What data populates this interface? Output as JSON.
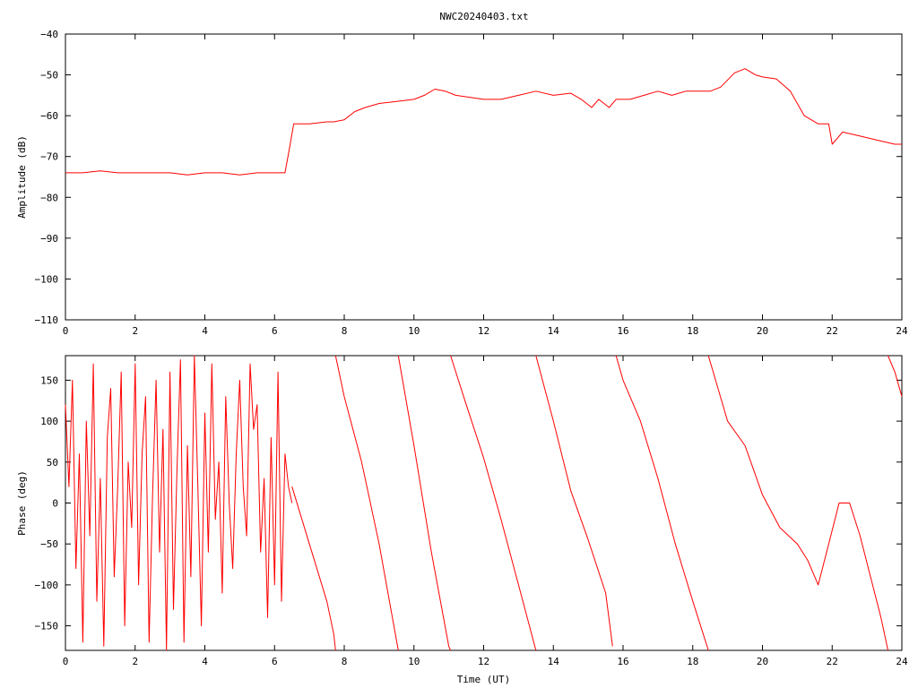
{
  "title": "NWC20240403.txt",
  "colors": {
    "trace": "#ff0000",
    "axes": "#000000",
    "background": "#ffffff"
  },
  "chart_data": [
    {
      "type": "line",
      "title": "NWC20240403.txt",
      "xlabel": "",
      "ylabel": "Amplitude (dB)",
      "xlim": [
        0,
        24
      ],
      "ylim": [
        -110,
        -40
      ],
      "xticks": [
        "0",
        "2",
        "4",
        "6",
        "8",
        "10",
        "12",
        "14",
        "16",
        "18",
        "20",
        "22",
        "24"
      ],
      "yticks": [
        "-40",
        "-50",
        "-60",
        "-70",
        "-80",
        "-90",
        "-100",
        "-110"
      ],
      "grid": false,
      "series": [
        {
          "x": [
            0,
            0.2,
            0.5,
            1,
            1.5,
            2,
            2.5,
            3,
            3.5,
            4,
            4.5,
            5,
            5.5,
            6,
            6.3,
            6.45,
            6.55,
            7,
            7.5,
            7.7,
            8,
            8.3,
            8.6,
            9,
            9.5,
            10,
            10.3,
            10.6,
            10.9,
            11.2,
            11.6,
            12,
            12.5,
            13,
            13.5,
            14,
            14.5,
            14.8,
            15.1,
            15.3,
            15.6,
            15.8,
            16.2,
            16.6,
            17,
            17.4,
            17.8,
            18.5,
            18.8,
            19.2,
            19.5,
            19.8,
            20,
            20.4,
            20.8,
            21.2,
            21.6,
            21.9,
            22,
            22.3,
            22.8,
            23.3,
            23.8,
            24
          ],
          "y": [
            -74,
            -74,
            -74,
            -73.5,
            -74,
            -74,
            -74,
            -74,
            -74.5,
            -74,
            -74,
            -74.5,
            -74,
            -74,
            -74,
            -67,
            -62,
            -62,
            -61.5,
            -61.5,
            -61,
            -59,
            -58,
            -57,
            -56.5,
            -56,
            -55,
            -53.5,
            -54,
            -55,
            -55.5,
            -56,
            -56,
            -55,
            -54,
            -55,
            -54.5,
            -56,
            -58,
            -56,
            -58,
            -56,
            -56,
            -55,
            -54,
            -55,
            -54,
            -54,
            -53,
            -49.5,
            -48.5,
            -50,
            -50.5,
            -51,
            -54,
            -60,
            -62,
            -62,
            -67,
            -64,
            -65,
            -66,
            -67,
            -67
          ]
        }
      ]
    },
    {
      "type": "line",
      "title": "",
      "xlabel": "Time (UT)",
      "ylabel": "Phase (deg)",
      "xlim": [
        0,
        24
      ],
      "ylim": [
        -180,
        180
      ],
      "xticks": [
        "0",
        "2",
        "4",
        "6",
        "8",
        "10",
        "12",
        "14",
        "16",
        "18",
        "20",
        "22",
        "24"
      ],
      "yticks": [
        "150",
        "100",
        "50",
        "0",
        "-50",
        "-100",
        "-150"
      ],
      "grid": false,
      "series": [
        {
          "x": [
            0,
            0.1,
            0.2,
            0.3,
            0.4,
            0.5,
            0.6,
            0.7,
            0.8,
            0.9,
            1.0,
            1.1,
            1.2,
            1.3,
            1.4,
            1.5,
            1.6,
            1.7,
            1.8,
            1.9,
            2.0,
            2.1,
            2.2,
            2.3,
            2.4,
            2.5,
            2.6,
            2.7,
            2.8,
            2.9,
            3.0,
            3.1,
            3.2,
            3.3,
            3.4,
            3.5,
            3.6,
            3.7,
            3.8,
            3.9,
            4.0,
            4.1,
            4.2,
            4.3,
            4.4,
            4.5,
            4.6,
            4.7,
            4.8,
            4.9,
            5.0,
            5.1,
            5.2,
            5.3,
            5.4,
            5.5,
            5.6,
            5.7,
            5.8,
            5.9,
            6.0,
            6.1,
            6.2,
            6.3,
            6.4,
            6.5
          ],
          "y": [
            120,
            20,
            150,
            -80,
            60,
            -170,
            100,
            -40,
            170,
            -120,
            30,
            -175,
            80,
            140,
            -90,
            20,
            160,
            -150,
            50,
            -30,
            170,
            -100,
            60,
            130,
            -170,
            10,
            150,
            -60,
            90,
            -180,
            160,
            -130,
            40,
            175,
            -170,
            70,
            -90,
            180,
            20,
            -150,
            110,
            -60,
            170,
            -20,
            50,
            -110,
            130,
            0,
            -80,
            60,
            150,
            20,
            -40,
            170,
            90,
            120,
            -60,
            30,
            -140,
            80,
            -100,
            160,
            -120,
            60,
            20,
            0
          ]
        },
        {
          "x": [
            6.5,
            7.0,
            7.5,
            7.7,
            7.75
          ],
          "y": [
            20,
            -50,
            -120,
            -160,
            -180
          ]
        },
        {
          "x": [
            7.75,
            8.0,
            8.5,
            9.0,
            9.55
          ],
          "y": [
            180,
            130,
            50,
            -50,
            -180
          ]
        },
        {
          "x": [
            9.55,
            10.0,
            10.5,
            11.0,
            11.05
          ],
          "y": [
            180,
            70,
            -60,
            -175,
            -180
          ]
        },
        {
          "x": [
            11.05,
            11.5,
            12.0,
            12.5,
            13.0,
            13.5
          ],
          "y": [
            180,
            120,
            55,
            -20,
            -100,
            -180
          ]
        },
        {
          "x": [
            13.5,
            14.0,
            14.5,
            15.0,
            15.5,
            15.7
          ],
          "y": [
            180,
            100,
            15,
            -45,
            -110,
            -175
          ]
        },
        {
          "x": [
            15.8,
            16.0,
            16.5,
            17.0,
            17.5,
            18.0,
            18.45
          ],
          "y": [
            180,
            150,
            100,
            30,
            -50,
            -120,
            -180
          ]
        },
        {
          "x": [
            18.45,
            19.0,
            19.5,
            20.0,
            20.5,
            21.0,
            21.3,
            21.6,
            21.9,
            22.2,
            22.5,
            22.8,
            23.1,
            23.4,
            23.6
          ],
          "y": [
            180,
            100,
            70,
            10,
            -30,
            -50,
            -70,
            -100,
            -50,
            0,
            0,
            -40,
            -90,
            -140,
            -180
          ]
        },
        {
          "x": [
            23.6,
            23.8,
            24.0
          ],
          "y": [
            180,
            160,
            130
          ]
        }
      ]
    }
  ]
}
